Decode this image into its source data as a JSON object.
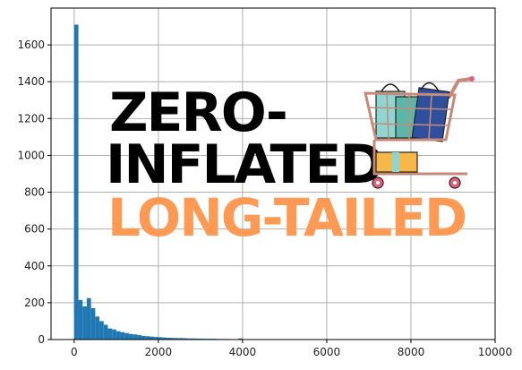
{
  "chart_data": {
    "type": "bar",
    "bin_width": 100,
    "x": [
      0,
      100,
      200,
      300,
      400,
      500,
      600,
      700,
      800,
      900,
      1000,
      1100,
      1200,
      1300,
      1400,
      1500,
      1600,
      1700,
      1800,
      1900,
      2000,
      2100,
      2200,
      2300,
      2400,
      2500,
      2600,
      2700,
      2800,
      2900,
      3000,
      3100,
      3200,
      3300,
      3400,
      3500,
      3600,
      3700,
      3800,
      3900
    ],
    "values": [
      1710,
      215,
      180,
      225,
      170,
      125,
      100,
      80,
      60,
      55,
      45,
      40,
      35,
      30,
      28,
      24,
      20,
      18,
      16,
      14,
      13,
      11,
      10,
      9,
      8,
      8,
      7,
      6,
      6,
      5,
      5,
      4,
      4,
      4,
      3,
      3,
      3,
      2,
      2,
      6
    ],
    "xlim": [
      -550,
      10000
    ],
    "ylim": [
      0,
      1800
    ],
    "xticks": [
      0,
      2000,
      4000,
      6000,
      8000,
      10000
    ],
    "yticks": [
      0,
      200,
      400,
      600,
      800,
      1000,
      1200,
      1400,
      1600
    ],
    "grid": true,
    "bar_color": "#1f77b4"
  },
  "overlay": {
    "line1": "ZERO-",
    "line2": "INFLATED",
    "line3": "LONG-TAILED",
    "line1_color": "#000000",
    "line3_color": "#ff9a55",
    "cart_icon": "shopping-cart-icon"
  }
}
